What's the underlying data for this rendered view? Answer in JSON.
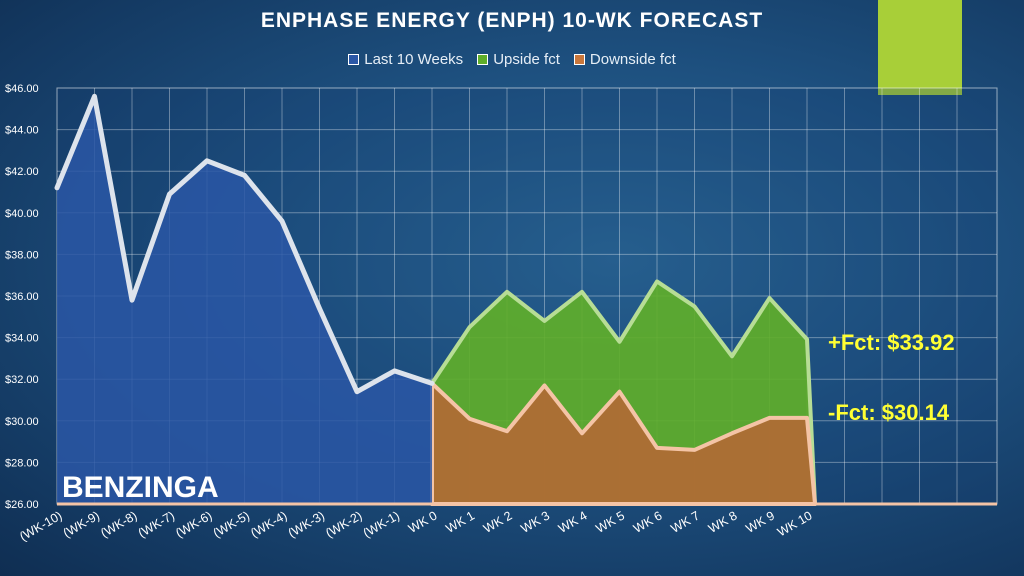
{
  "colors": {
    "history_fill": "#2a57a6",
    "history_line": "#dde3ec",
    "upside_fill": "#5fae2a",
    "upside_line": "#b7dd95",
    "downside_fill": "#b06a35",
    "downside_line": "#f4c4a6",
    "annotation": "#ffff33",
    "accent_tab": "#a8cf38"
  },
  "legend": {
    "history": "Last 10 Weeks",
    "upside": "Upside fct",
    "downside": "Downside fct"
  },
  "chart_data": {
    "type": "area",
    "title": "ENPHASE ENERGY (ENPH) 10-WK FORECAST",
    "categories": [
      "(WK-10)",
      "(WK-9)",
      "(WK-8)",
      "(WK-7)",
      "(WK-6)",
      "(WK-5)",
      "(WK-4)",
      "(WK-3)",
      "(WK-2)",
      "(WK-1)",
      "WK 0",
      "WK 1",
      "WK 2",
      "WK 3",
      "WK 4",
      "WK 5",
      "WK 6",
      "WK 7",
      "WK 8",
      "WK 9",
      "WK 10"
    ],
    "series": [
      {
        "name": "Last 10 Weeks",
        "values": [
          41.2,
          45.6,
          35.8,
          40.9,
          42.5,
          41.8,
          39.6,
          35.4,
          31.4,
          32.4,
          31.8,
          null,
          null,
          null,
          null,
          null,
          null,
          null,
          null,
          null,
          null
        ]
      },
      {
        "name": "Upside fct",
        "values": [
          null,
          null,
          null,
          null,
          null,
          null,
          null,
          null,
          null,
          null,
          31.8,
          34.5,
          36.2,
          34.8,
          36.2,
          33.8,
          36.7,
          35.5,
          33.1,
          35.9,
          33.92
        ]
      },
      {
        "name": "Downside fct",
        "values": [
          null,
          null,
          null,
          null,
          null,
          null,
          null,
          null,
          null,
          null,
          31.8,
          30.1,
          29.5,
          31.7,
          29.4,
          31.4,
          28.7,
          28.6,
          29.4,
          30.14,
          30.14
        ]
      }
    ],
    "ylim": [
      26,
      46
    ],
    "yticks": [
      "$26.00",
      "$28.00",
      "$30.00",
      "$32.00",
      "$34.00",
      "$36.00",
      "$38.00",
      "$40.00",
      "$42.00",
      "$44.00",
      "$46.00"
    ],
    "grid": true,
    "legend_position": "top",
    "annotations": {
      "upside": "+Fct: $33.92",
      "downside": "-Fct: $30.14"
    }
  },
  "watermark": "BENZINGA"
}
